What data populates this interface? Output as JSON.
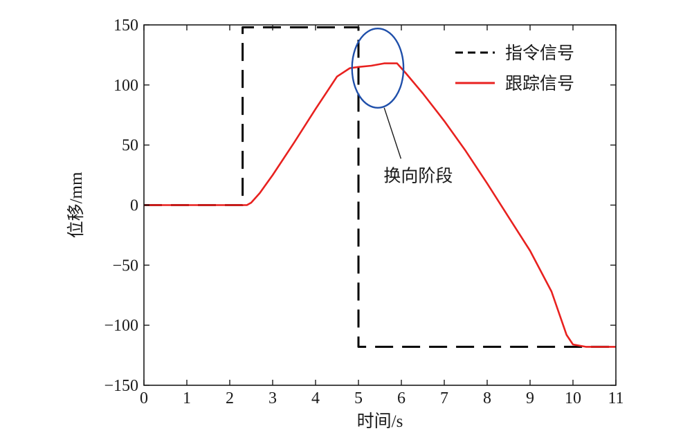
{
  "chart_data": {
    "type": "line",
    "title": "",
    "xlabel": "时间/s",
    "ylabel": "位移/mm",
    "xlim": [
      0,
      11
    ],
    "ylim": [
      -150,
      150
    ],
    "x_ticks": [
      0,
      1,
      2,
      3,
      4,
      5,
      6,
      7,
      8,
      9,
      10,
      11
    ],
    "y_ticks": [
      150,
      100,
      50,
      0,
      -50,
      -100,
      -150
    ],
    "x_tick_labels": [
      "0",
      "1",
      "2",
      "3",
      "4",
      "5",
      "6",
      "7",
      "8",
      "9",
      "10",
      "11"
    ],
    "y_tick_labels": [
      "150",
      "100",
      "50",
      "0",
      "−50",
      "−100",
      "−150"
    ],
    "grid": false,
    "legend_position": "top-right",
    "series": [
      {
        "name": "指令信号",
        "color": "#000000",
        "style": "dashed",
        "points": [
          [
            0,
            0
          ],
          [
            2.3,
            0
          ],
          [
            2.3,
            148
          ],
          [
            5.0,
            148
          ],
          [
            5.0,
            -118
          ],
          [
            11,
            -118
          ]
        ]
      },
      {
        "name": "跟踪信号",
        "color": "#e8211f",
        "style": "solid",
        "points": [
          [
            0,
            0
          ],
          [
            2.4,
            0
          ],
          [
            2.5,
            2
          ],
          [
            2.7,
            10
          ],
          [
            3.0,
            25
          ],
          [
            3.5,
            52
          ],
          [
            4.0,
            80
          ],
          [
            4.5,
            107
          ],
          [
            4.8,
            114
          ],
          [
            5.0,
            115
          ],
          [
            5.3,
            116
          ],
          [
            5.6,
            118
          ],
          [
            5.9,
            118
          ],
          [
            6.1,
            110
          ],
          [
            6.5,
            93
          ],
          [
            7.0,
            70
          ],
          [
            7.5,
            45
          ],
          [
            8.0,
            18
          ],
          [
            8.5,
            -10
          ],
          [
            9.0,
            -38
          ],
          [
            9.5,
            -72
          ],
          [
            9.85,
            -108
          ],
          [
            10.0,
            -116
          ],
          [
            10.3,
            -118
          ],
          [
            11,
            -118
          ]
        ]
      }
    ],
    "annotations": [
      {
        "text": "换向阶段",
        "color": "#1f4faa",
        "circle": {
          "center": [
            5.45,
            114
          ],
          "rx": 0.6,
          "ry": 33
        },
        "pointer_to": [
          5.6,
          81
        ],
        "text_at": [
          7.2,
          30
        ]
      }
    ]
  }
}
